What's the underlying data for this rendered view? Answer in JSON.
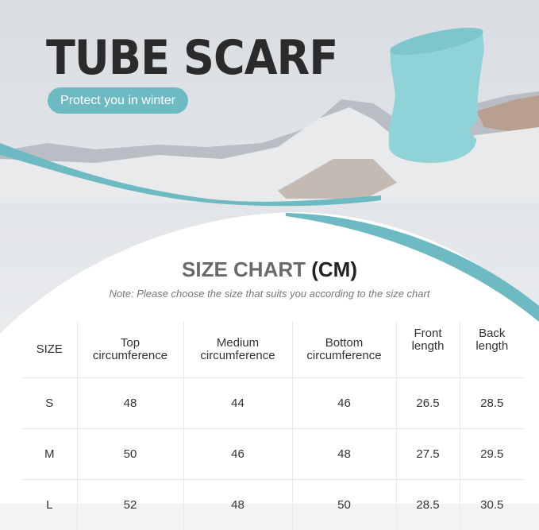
{
  "banner": {
    "title": "TUBE SCARF",
    "tagline": "Protect you in winter"
  },
  "size_chart": {
    "title": "SIZE CHART",
    "unit": "(CM)",
    "note": "Note: Please choose the size that suits you according to the size chart",
    "headers": [
      "SIZE",
      "Top circumference",
      "Medium circumference",
      "Bottom circumference",
      "Front length",
      "Back length"
    ],
    "rows": [
      [
        "S",
        "48",
        "44",
        "46",
        "26.5",
        "28.5"
      ],
      [
        "M",
        "50",
        "46",
        "48",
        "27.5",
        "29.5"
      ],
      [
        "L",
        "52",
        "48",
        "50",
        "28.5",
        "30.5"
      ]
    ]
  },
  "colors": {
    "accent": "#6dbac3",
    "scarf": "#8fd3d8"
  }
}
